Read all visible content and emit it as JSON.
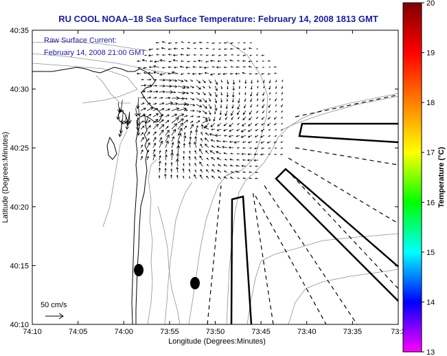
{
  "title": "RU COOL  NOAA–18  Sea Surface Temperature:  February 14, 2008 1813 GMT",
  "annotation": {
    "line1": "Raw Surface Current:",
    "line2": "February 14, 2008 21:00 GMT"
  },
  "scale_label": "50 cm/s",
  "x_axis": {
    "label": "Longitude (Degrees:Minutes)",
    "ticks": [
      "74:10",
      "74:05",
      "74:00",
      "73:55",
      "73:50",
      "73:45",
      "73:40",
      "73:35",
      "73:3"
    ]
  },
  "y_axis": {
    "label": "Latitude (Degrees:Minutes)",
    "ticks": [
      "40:10",
      "40:15",
      "40:20",
      "40:25",
      "40:30",
      "40:35"
    ]
  },
  "colorbar": {
    "label": "Temperature (°C)",
    "ticks": [
      "13",
      "14",
      "15",
      "16",
      "17",
      "18",
      "19",
      "20"
    ],
    "range": [
      13,
      20
    ],
    "colors": [
      "#ff00ff",
      "#0000ff",
      "#00ffff",
      "#00ff00",
      "#ffff00",
      "#ff8000",
      "#ff0000",
      "#800000"
    ]
  },
  "colors": {
    "title": "#1a1aa8",
    "coast": "#000000",
    "isobath": "#808080",
    "vectors": "#000000"
  }
}
